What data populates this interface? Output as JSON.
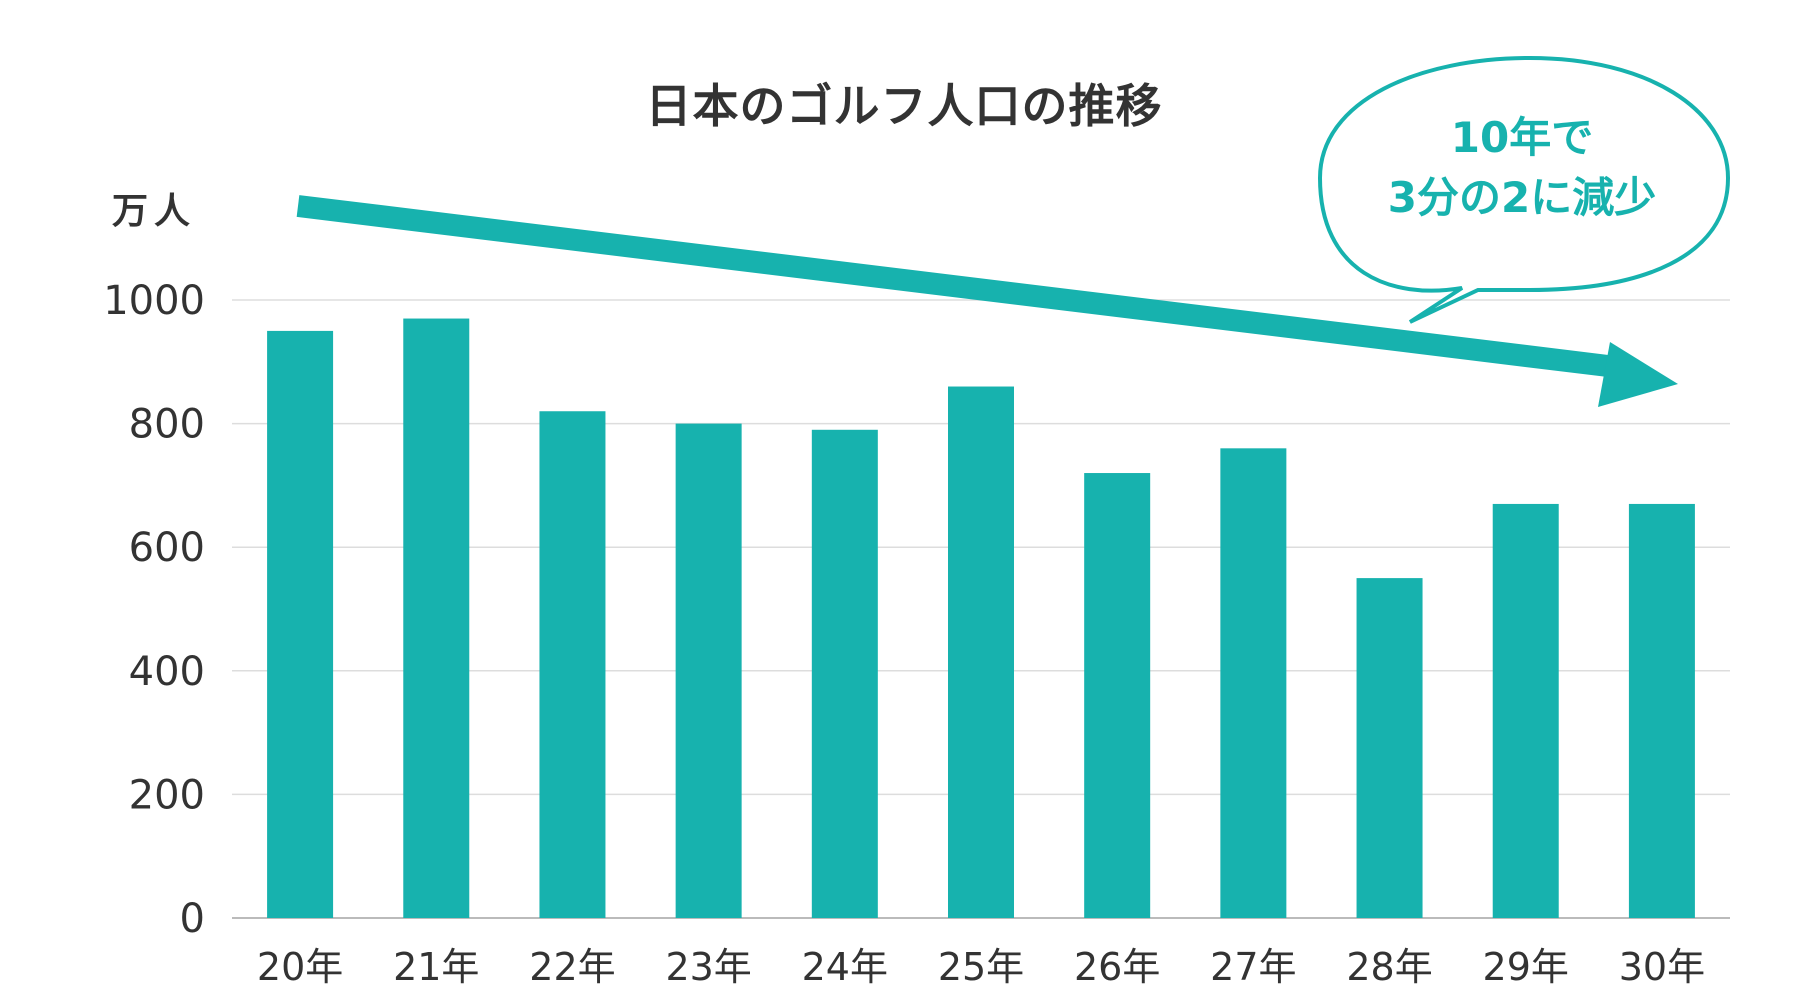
{
  "chart_data": {
    "type": "bar",
    "title": "日本のゴルフ人口の推移",
    "ylabel": "万人",
    "xlabel": "",
    "categories": [
      "20年",
      "21年",
      "22年",
      "23年",
      "24年",
      "25年",
      "26年",
      "27年",
      "28年",
      "29年",
      "30年"
    ],
    "values": [
      950,
      970,
      820,
      800,
      790,
      860,
      720,
      760,
      550,
      670,
      670
    ],
    "ylim": [
      0,
      1000
    ],
    "yticks": [
      "0",
      "200",
      "400",
      "600",
      "800",
      "1000"
    ],
    "grid": true,
    "bar_color": "#17b2ae",
    "annotation": {
      "line1": "10年で",
      "line2": "3分の2に減少",
      "color": "#17b2ae"
    }
  }
}
